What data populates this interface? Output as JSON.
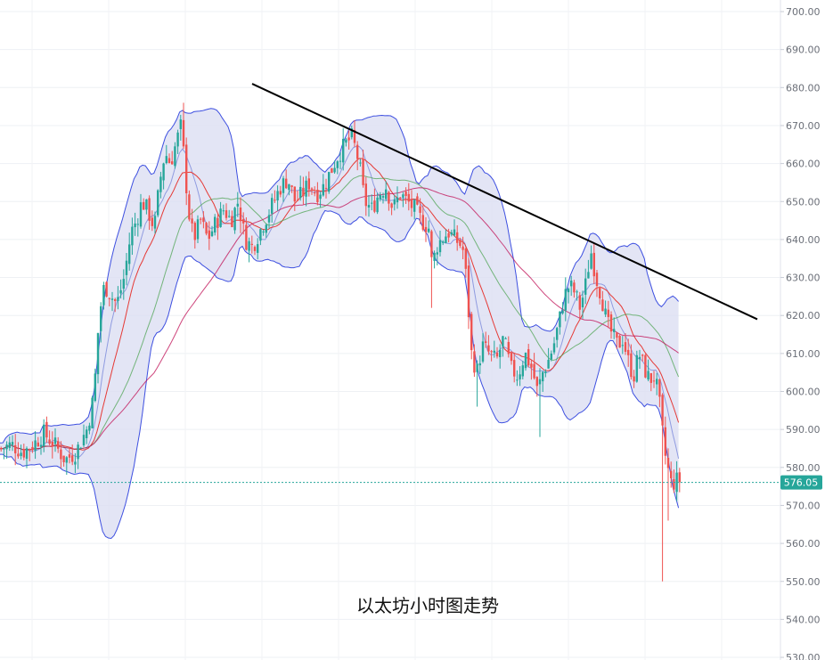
{
  "caption": "以太坊小时图走势",
  "chart_data": {
    "type": "candlestick",
    "title": "以太坊小时图走势",
    "y_axis": {
      "position": "right",
      "ylim": [
        530,
        700
      ],
      "ticks": [
        "700.00",
        "690.00",
        "680.00",
        "670.00",
        "660.00",
        "650.00",
        "640.00",
        "630.00",
        "620.00",
        "610.00",
        "600.00",
        "590.00",
        "580.00",
        "570.00",
        "560.00",
        "550.00",
        "540.00",
        "530.00"
      ]
    },
    "last_price": "576.05",
    "grid": true,
    "overlays": [
      "bollinger-bands",
      "moving-averages",
      "trendline"
    ],
    "colors": {
      "up": "#26a69a",
      "down": "#ef5350",
      "band_fill": "#c5c8e8",
      "band_line": "#3d4fe0",
      "ma_fast": "#e53935",
      "ma_mid": "#43a047",
      "ma_slow": "#c2185b",
      "ma_middle_band": "#7e8cd8",
      "trendline": "#000000",
      "last_price_line": "#26a69a",
      "price_tag_bg": "#26a69a"
    },
    "close_path": [
      [
        0,
        585
      ],
      [
        12,
        586
      ],
      [
        24,
        584
      ],
      [
        36,
        586
      ],
      [
        48,
        589
      ],
      [
        60,
        586
      ],
      [
        72,
        582
      ],
      [
        84,
        584
      ],
      [
        96,
        590
      ],
      [
        102,
        596
      ],
      [
        106,
        605
      ],
      [
        110,
        620
      ],
      [
        116,
        628
      ],
      [
        124,
        625
      ],
      [
        130,
        623
      ],
      [
        138,
        630
      ],
      [
        146,
        642
      ],
      [
        152,
        645
      ],
      [
        158,
        650
      ],
      [
        164,
        648
      ],
      [
        172,
        643
      ],
      [
        178,
        655
      ],
      [
        184,
        663
      ],
      [
        190,
        660
      ],
      [
        196,
        665
      ],
      [
        202,
        670
      ],
      [
        206,
        660
      ],
      [
        210,
        648
      ],
      [
        216,
        640
      ],
      [
        224,
        645
      ],
      [
        232,
        640
      ],
      [
        240,
        644
      ],
      [
        250,
        648
      ],
      [
        258,
        645
      ],
      [
        266,
        650
      ],
      [
        274,
        640
      ],
      [
        282,
        638
      ],
      [
        290,
        642
      ],
      [
        298,
        646
      ],
      [
        306,
        650
      ],
      [
        314,
        654
      ],
      [
        322,
        656
      ],
      [
        330,
        650
      ],
      [
        338,
        652
      ],
      [
        346,
        655
      ],
      [
        354,
        652
      ],
      [
        362,
        654
      ],
      [
        370,
        658
      ],
      [
        378,
        662
      ],
      [
        386,
        665
      ],
      [
        394,
        667
      ],
      [
        402,
        660
      ],
      [
        408,
        650
      ],
      [
        416,
        648
      ],
      [
        424,
        652
      ],
      [
        432,
        654
      ],
      [
        440,
        648
      ],
      [
        448,
        652
      ],
      [
        456,
        650
      ],
      [
        464,
        648
      ],
      [
        472,
        645
      ],
      [
        480,
        643
      ],
      [
        484,
        632
      ],
      [
        488,
        638
      ],
      [
        494,
        640
      ],
      [
        502,
        642
      ],
      [
        510,
        640
      ],
      [
        518,
        638
      ],
      [
        522,
        630
      ],
      [
        528,
        610
      ],
      [
        534,
        605
      ],
      [
        540,
        612
      ],
      [
        548,
        610
      ],
      [
        556,
        608
      ],
      [
        564,
        614
      ],
      [
        572,
        606
      ],
      [
        580,
        604
      ],
      [
        588,
        610
      ],
      [
        596,
        606
      ],
      [
        602,
        600
      ],
      [
        608,
        605
      ],
      [
        614,
        608
      ],
      [
        620,
        612
      ],
      [
        626,
        618
      ],
      [
        632,
        625
      ],
      [
        638,
        628
      ],
      [
        644,
        626
      ],
      [
        650,
        622
      ],
      [
        656,
        628
      ],
      [
        662,
        637
      ],
      [
        668,
        630
      ],
      [
        674,
        625
      ],
      [
        680,
        618
      ],
      [
        686,
        615
      ],
      [
        692,
        612
      ],
      [
        698,
        614
      ],
      [
        704,
        608
      ],
      [
        710,
        604
      ],
      [
        716,
        610
      ],
      [
        722,
        606
      ],
      [
        728,
        603
      ],
      [
        734,
        604
      ],
      [
        740,
        595
      ],
      [
        744,
        585
      ],
      [
        748,
        580
      ],
      [
        752,
        576
      ],
      [
        756,
        576
      ],
      [
        760,
        577
      ],
      [
        764,
        576
      ]
    ],
    "trendline": {
      "from": [
        283,
        681
      ],
      "to": [
        850,
        619
      ]
    }
  }
}
